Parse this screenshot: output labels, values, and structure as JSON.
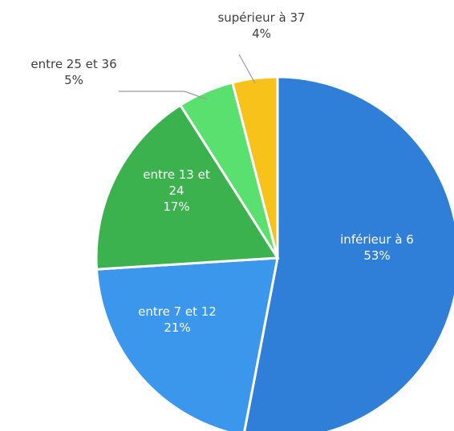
{
  "chart_data": {
    "type": "pie",
    "slices": [
      {
        "label_lines": [
          "inférieur à 6"
        ],
        "value": 53,
        "value_label": "53%",
        "color": "#2f7ed8"
      },
      {
        "label_lines": [
          "entre 7 et 12"
        ],
        "value": 21,
        "value_label": "21%",
        "color": "#3a97ec"
      },
      {
        "label_lines": [
          "entre 13 et",
          "24"
        ],
        "value": 17,
        "value_label": "17%",
        "color": "#3cb24f"
      },
      {
        "label_lines": [
          "entre 25 et 36"
        ],
        "value": 5,
        "value_label": "5%",
        "color": "#59e06f"
      },
      {
        "label_lines": [
          "supérieur à 37"
        ],
        "value": 4,
        "value_label": "4%",
        "color": "#f7c21a"
      }
    ],
    "start_angle_deg": 0,
    "direction": "clockwise",
    "legend": "none"
  }
}
